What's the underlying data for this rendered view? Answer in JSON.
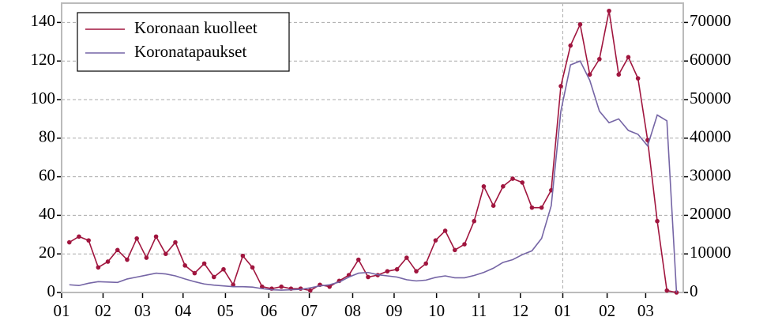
{
  "chart_data": {
    "type": "line",
    "x": [
      0.8,
      1.8,
      2.8,
      3.8,
      4.8,
      5.8,
      6.8,
      7.8,
      8.8,
      9.8,
      10.8,
      11.8,
      12.8,
      13.8,
      14.8,
      15.8,
      16.8,
      17.8,
      18.8,
      19.8,
      20.8,
      21.8,
      22.8,
      23.8,
      24.8,
      25.8,
      26.8,
      27.8,
      28.8,
      29.8,
      30.8,
      31.8,
      32.8,
      33.8,
      34.8,
      35.8,
      36.8,
      37.8,
      38.8,
      39.8,
      40.8,
      41.8,
      42.8,
      43.8,
      44.8,
      45.8,
      46.8,
      47.8,
      48.8,
      49.8,
      50.8,
      51.8,
      52.8,
      53.8,
      54.8,
      55.8,
      56.8,
      57.8,
      58.8,
      59.8,
      60.8,
      61.8,
      62.8,
      63.8
    ],
    "series": [
      {
        "name": "Koronaan kuolleet",
        "color": "#a0153e",
        "markers": true,
        "values": [
          26,
          29,
          27,
          13,
          16,
          22,
          17,
          28,
          18,
          29,
          20,
          26,
          14,
          10,
          15,
          8,
          12,
          4,
          19,
          13,
          3,
          2,
          3,
          2,
          2,
          1,
          4,
          3,
          6,
          9,
          17,
          8,
          9,
          11,
          12,
          18,
          11,
          15,
          27,
          32,
          22,
          25,
          37,
          55,
          45,
          55,
          59,
          57,
          44,
          44,
          53,
          107,
          128,
          139,
          113,
          121,
          146,
          113,
          122,
          111,
          79,
          37,
          1,
          0
        ]
      },
      {
        "name": "Koronatapaukset",
        "color": "#7565a5",
        "axis": "y2",
        "markers": false,
        "values": [
          2000,
          1800,
          2400,
          2800,
          2700,
          2600,
          3500,
          4000,
          4500,
          5000,
          4800,
          4300,
          3500,
          2800,
          2200,
          1900,
          1700,
          1500,
          1500,
          1400,
          1000,
          700,
          600,
          700,
          800,
          1200,
          1700,
          2000,
          2700,
          4000,
          5000,
          5200,
          4600,
          4300,
          4000,
          3300,
          3000,
          3200,
          3900,
          4300,
          3800,
          3800,
          4400,
          5200,
          6300,
          7800,
          8500,
          9800,
          10800,
          14000,
          22500,
          47000,
          59000,
          60000,
          55000,
          47000,
          44000,
          45000,
          42000,
          41000,
          38000,
          46000,
          44500,
          0
        ]
      }
    ],
    "xlim": [
      0,
      64.5
    ],
    "xticks": [
      {
        "value": 0,
        "label": "01"
      },
      {
        "value": 4.3,
        "label": "02"
      },
      {
        "value": 8.4,
        "label": "03"
      },
      {
        "value": 12.6,
        "label": "04"
      },
      {
        "value": 17,
        "label": "05"
      },
      {
        "value": 21.5,
        "label": "06"
      },
      {
        "value": 25.7,
        "label": "07"
      },
      {
        "value": 30.2,
        "label": "08"
      },
      {
        "value": 34.5,
        "label": "09"
      },
      {
        "value": 38.9,
        "label": "10"
      },
      {
        "value": 43.3,
        "label": "11"
      },
      {
        "value": 47.6,
        "label": "12"
      },
      {
        "value": 52,
        "label": "01"
      },
      {
        "value": 56.6,
        "label": "02"
      },
      {
        "value": 60.6,
        "label": "03"
      }
    ],
    "xgrid": [
      52
    ],
    "ylim": [
      0,
      150
    ],
    "yticks": [
      0,
      20,
      40,
      60,
      80,
      100,
      120,
      140
    ],
    "y2lim": [
      0,
      75000
    ],
    "y2ticks": [
      0,
      10000,
      20000,
      30000,
      40000,
      50000,
      60000,
      70000
    ],
    "grid": true,
    "legend": "upper left"
  }
}
